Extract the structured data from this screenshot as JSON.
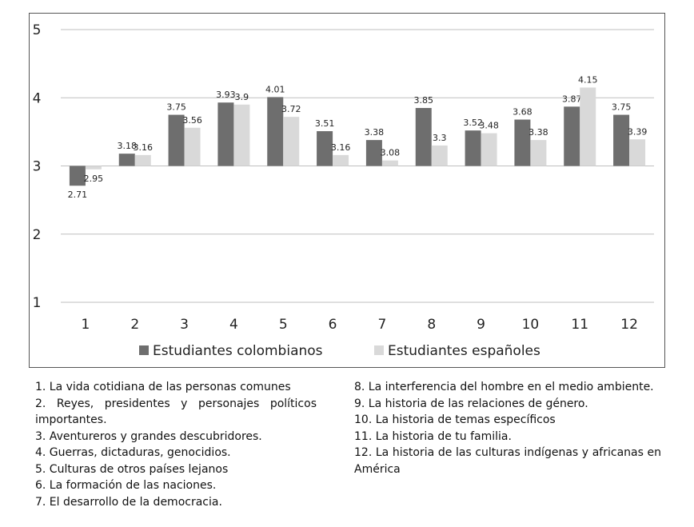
{
  "chart_data": {
    "type": "bar",
    "categories": [
      "1",
      "2",
      "3",
      "4",
      "5",
      "6",
      "7",
      "8",
      "9",
      "10",
      "11",
      "12"
    ],
    "series": [
      {
        "name": "Estudiantes colombianos",
        "color": "#6e6e6e",
        "values": [
          2.71,
          3.18,
          3.75,
          3.93,
          4.01,
          3.51,
          3.38,
          3.85,
          3.52,
          3.68,
          3.87,
          3.75
        ],
        "labels": [
          "2.71",
          "3.18",
          "3.75",
          "3.93",
          "4.01",
          "3.51",
          "3.38",
          "3.85",
          "3.52",
          "3.68",
          "3.87",
          "3.75"
        ]
      },
      {
        "name": "Estudiantes españoles",
        "color": "#d9d9d9",
        "values": [
          2.95,
          3.16,
          3.56,
          3.9,
          3.72,
          3.16,
          3.08,
          3.3,
          3.48,
          3.38,
          4.15,
          3.39
        ],
        "labels": [
          "2.95",
          "3.16",
          "3.56",
          "3.9",
          "3.72",
          "3.16",
          "3.08",
          "3.3",
          "3.48",
          "3.38",
          "4.15",
          "3.39"
        ]
      }
    ],
    "ylim": [
      1,
      5
    ],
    "yticks": [
      "1",
      "2",
      "3",
      "4",
      "5"
    ],
    "baseline": 3,
    "grid": true,
    "legend_position": "bottom"
  },
  "notes": {
    "left": [
      "1. La vida cotidiana de las personas comunes",
      "2. Reyes, presidentes y personajes políticos importantes.",
      "3. Aventureros y grandes descubridores.",
      "4. Guerras, dictaduras, genocidios.",
      "5. Culturas de otros países lejanos",
      "6. La formación de las naciones.",
      "7. El desarrollo de la democracia."
    ],
    "right": [
      "8. La interferencia del hombre en el medio ambiente.",
      "9. La historia de las relaciones de género.",
      "10. La historia de temas específicos",
      "11. La historia de tu familia.",
      "12. La historia de las culturas indígenas y africanas en América"
    ]
  }
}
